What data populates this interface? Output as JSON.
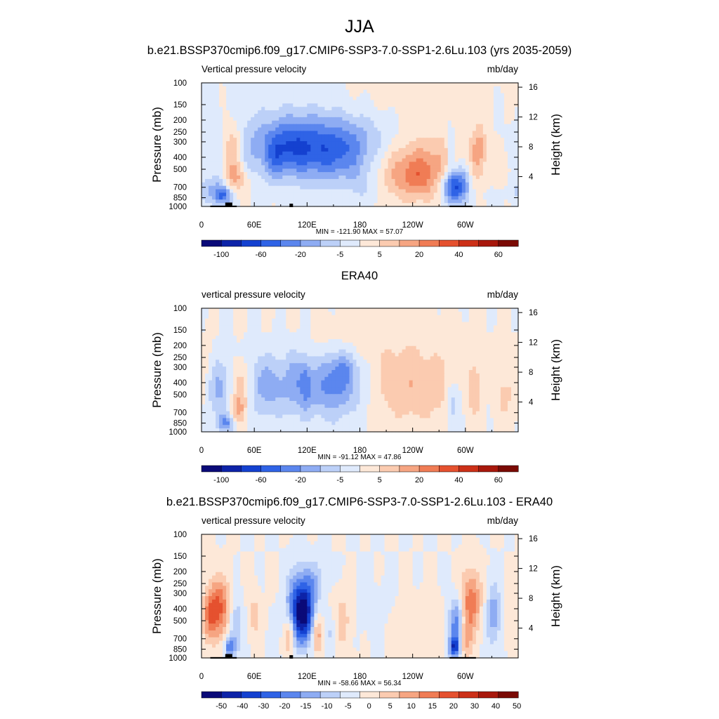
{
  "figure": {
    "season": "JJA",
    "panel_titles": [
      "b.e21.BSSP370cmip6.f09_g17.CMIP6-SSP3-7.0-SSP1-2.6Lu.103 (yrs 2035-2059)",
      "ERA40",
      "b.e21.BSSP370cmip6.f09_g17.CMIP6-SSP3-7.0-SSP1-2.6Lu.103 - ERA40"
    ]
  },
  "chart_data": [
    {
      "type": "heatmap",
      "title": "b.e21.BSSP370cmip6.f09_g17.CMIP6-SSP3-7.0-SSP1-2.6Lu.103 (yrs 2035-2059)",
      "left_label": "Vertical pressure velocity",
      "units": "mb/day",
      "ylabel": "Pressure (mb)",
      "y2label": "Height (km)",
      "x_ticks": [
        "0",
        "60E",
        "120E",
        "180",
        "120W",
        "60W"
      ],
      "x_tick_lon": [
        0,
        60,
        120,
        180,
        240,
        300
      ],
      "xlim": [
        0,
        360
      ],
      "y_ticks": [
        "100",
        "150",
        "200",
        "250",
        "300",
        "400",
        "500",
        "700",
        "850",
        "1000"
      ],
      "y_tick_p": [
        100,
        150,
        200,
        250,
        300,
        400,
        500,
        700,
        850,
        1000
      ],
      "ylim": [
        1000,
        100
      ],
      "y2_ticks": [
        "16",
        "12",
        "8",
        "4"
      ],
      "y2_tick_km": [
        16,
        12,
        8,
        4
      ],
      "minmax": "MIN = -121.90  MAX =  57.07",
      "colorbar_labels": [
        "-100",
        "-60",
        "-20",
        "-5",
        "5",
        "20",
        "40",
        "60"
      ],
      "colorbar_colors": [
        "#0a0a78",
        "#0d23a8",
        "#1441d0",
        "#2f63e6",
        "#5b86ee",
        "#8eacf3",
        "#bcd0f8",
        "#dfeafc",
        "#fde8d8",
        "#fbcbb0",
        "#f6a582",
        "#f07c55",
        "#e5512f",
        "#cc3018",
        "#a8180c",
        "#7a0a04"
      ],
      "topography": [
        [
          10,
          28,
          1000,
          985
        ],
        [
          27,
          35,
          1000,
          930
        ],
        [
          35,
          40,
          1000,
          985
        ],
        [
          100,
          104,
          1000,
          950
        ],
        [
          282,
          308,
          1000,
          985
        ]
      ],
      "blobs": [
        {
          "lon": 135,
          "p": 330,
          "wl": 68,
          "wp": 0.42,
          "v": -26
        },
        {
          "lon": 100,
          "p": 330,
          "wl": 18,
          "wp": 0.32,
          "v": -10
        },
        {
          "lon": 155,
          "p": 430,
          "wl": 28,
          "wp": 0.38,
          "v": -10
        },
        {
          "lon": 125,
          "p": 230,
          "wl": 50,
          "wp": 0.55,
          "v": -6
        },
        {
          "lon": 85,
          "p": 420,
          "wl": 8,
          "wp": 0.3,
          "v": -9
        },
        {
          "lon": 185,
          "p": 700,
          "wl": 12,
          "wp": 0.3,
          "v": -8
        },
        {
          "lon": 240,
          "p": 450,
          "wl": 42,
          "wp": 0.42,
          "v": 24
        },
        {
          "lon": 245,
          "p": 600,
          "wl": 16,
          "wp": 0.25,
          "v": 12
        },
        {
          "lon": 210,
          "p": 150,
          "wl": 70,
          "wp": 0.4,
          "v": 4
        },
        {
          "lon": 35,
          "p": 350,
          "wl": 8,
          "wp": 0.38,
          "v": 22
        },
        {
          "lon": 40,
          "p": 600,
          "wl": 10,
          "wp": 0.18,
          "v": 14
        },
        {
          "lon": 12,
          "p": 750,
          "wl": 14,
          "wp": 0.18,
          "v": -16
        },
        {
          "lon": 25,
          "p": 820,
          "wl": 6,
          "wp": 0.12,
          "v": -25
        },
        {
          "lon": 18,
          "p": 400,
          "wl": 4,
          "wp": 0.55,
          "v": -3
        },
        {
          "lon": 287,
          "p": 700,
          "wl": 10,
          "wp": 0.22,
          "v": -40
        },
        {
          "lon": 283,
          "p": 350,
          "wl": 3,
          "wp": 0.3,
          "v": -14
        },
        {
          "lon": 300,
          "p": 560,
          "wl": 10,
          "wp": 0.35,
          "v": -12
        },
        {
          "lon": 312,
          "p": 420,
          "wl": 6,
          "wp": 0.4,
          "v": 14
        },
        {
          "lon": 318,
          "p": 320,
          "wl": 5,
          "wp": 0.25,
          "v": 10
        },
        {
          "lon": 345,
          "p": 550,
          "wl": 12,
          "wp": 0.5,
          "v": 3
        },
        {
          "lon": 330,
          "p": 820,
          "wl": 8,
          "wp": 0.12,
          "v": -5
        }
      ]
    },
    {
      "type": "heatmap",
      "title": "ERA40",
      "left_label": "vertical pressure velocity",
      "units": "mb/day",
      "ylabel": "Pressure (mb)",
      "y2label": "Height (km)",
      "x_ticks": [
        "0",
        "60E",
        "120E",
        "180",
        "120W",
        "60W"
      ],
      "x_tick_lon": [
        0,
        60,
        120,
        180,
        240,
        300
      ],
      "xlim": [
        0,
        360
      ],
      "y_ticks": [
        "100",
        "150",
        "200",
        "250",
        "300",
        "400",
        "500",
        "700",
        "850",
        "1000"
      ],
      "y_tick_p": [
        100,
        150,
        200,
        250,
        300,
        400,
        500,
        700,
        850,
        1000
      ],
      "ylim": [
        1000,
        100
      ],
      "y2_ticks": [
        "16",
        "12",
        "8",
        "4"
      ],
      "y2_tick_km": [
        16,
        12,
        8,
        4
      ],
      "minmax": "MIN = -91.12  MAX =  47.86",
      "colorbar_labels": [
        "-100",
        "-60",
        "-20",
        "-5",
        "5",
        "20",
        "40",
        "60"
      ],
      "colorbar_colors": [
        "#0a0a78",
        "#0d23a8",
        "#1441d0",
        "#2f63e6",
        "#5b86ee",
        "#8eacf3",
        "#bcd0f8",
        "#dfeafc",
        "#fde8d8",
        "#fbcbb0",
        "#f6a582",
        "#f07c55",
        "#e5512f",
        "#cc3018",
        "#a8180c",
        "#7a0a04"
      ],
      "topography": [],
      "blobs": [
        {
          "lon": 75,
          "p": 420,
          "wl": 22,
          "wp": 0.42,
          "v": -18
        },
        {
          "lon": 150,
          "p": 450,
          "wl": 28,
          "wp": 0.4,
          "v": -24
        },
        {
          "lon": 160,
          "p": 300,
          "wl": 14,
          "wp": 0.25,
          "v": -14
        },
        {
          "lon": 118,
          "p": 380,
          "wl": 5,
          "wp": 0.38,
          "v": -14
        },
        {
          "lon": 105,
          "p": 350,
          "wl": 6,
          "wp": 0.45,
          "v": -8
        },
        {
          "lon": 20,
          "p": 450,
          "wl": 10,
          "wp": 0.4,
          "v": -16
        },
        {
          "lon": 28,
          "p": 850,
          "wl": 8,
          "wp": 0.12,
          "v": -22
        },
        {
          "lon": 45,
          "p": 450,
          "wl": 8,
          "wp": 0.35,
          "v": 20
        },
        {
          "lon": 40,
          "p": 700,
          "wl": 6,
          "wp": 0.18,
          "v": 14
        },
        {
          "lon": 240,
          "p": 450,
          "wl": 45,
          "wp": 0.45,
          "v": 14
        },
        {
          "lon": 210,
          "p": 180,
          "wl": 60,
          "wp": 0.4,
          "v": 5
        },
        {
          "lon": 285,
          "p": 600,
          "wl": 5,
          "wp": 0.3,
          "v": -16
        },
        {
          "lon": 298,
          "p": 450,
          "wl": 6,
          "wp": 0.35,
          "v": -8
        },
        {
          "lon": 310,
          "p": 450,
          "wl": 8,
          "wp": 0.38,
          "v": 10
        },
        {
          "lon": 325,
          "p": 500,
          "wl": 7,
          "wp": 0.35,
          "v": -5
        },
        {
          "lon": 345,
          "p": 500,
          "wl": 12,
          "wp": 0.4,
          "v": 8
        },
        {
          "lon": 5,
          "p": 260,
          "wl": 6,
          "wp": 0.3,
          "v": 4
        }
      ]
    },
    {
      "type": "heatmap",
      "title": "b.e21.BSSP370cmip6.f09_g17.CMIP6-SSP3-7.0-SSP1-2.6Lu.103 - ERA40",
      "left_label": "vertical pressure velocity",
      "units": "mb/day",
      "ylabel": "Pressure (mb)",
      "y2label": "Height (km)",
      "x_ticks": [
        "0",
        "60E",
        "120E",
        "180",
        "120W",
        "60W"
      ],
      "x_tick_lon": [
        0,
        60,
        120,
        180,
        240,
        300
      ],
      "xlim": [
        0,
        360
      ],
      "y_ticks": [
        "100",
        "150",
        "200",
        "250",
        "300",
        "400",
        "500",
        "700",
        "850",
        "1000"
      ],
      "y_tick_p": [
        100,
        150,
        200,
        250,
        300,
        400,
        500,
        700,
        850,
        1000
      ],
      "ylim": [
        1000,
        100
      ],
      "y2_ticks": [
        "16",
        "12",
        "8",
        "4"
      ],
      "y2_tick_km": [
        16,
        12,
        8,
        4
      ],
      "minmax": "MIN = -58.66  MAX =  56.34",
      "colorbar_labels": [
        "-50",
        "-40",
        "-30",
        "-20",
        "-15",
        "-10",
        "-5",
        "0",
        "5",
        "10",
        "15",
        "20",
        "30",
        "40",
        "50"
      ],
      "colorbar_colors": [
        "#0a0a78",
        "#0d23a8",
        "#1441d0",
        "#2f63e6",
        "#5b86ee",
        "#8eacf3",
        "#bcd0f8",
        "#dfeafc",
        "#fde8d8",
        "#fbcbb0",
        "#f6a582",
        "#f07c55",
        "#e5512f",
        "#cc3018",
        "#a8180c",
        "#7a0a04"
      ],
      "topography": [
        [
          10,
          28,
          1000,
          985
        ],
        [
          27,
          35,
          1000,
          930
        ],
        [
          35,
          40,
          1000,
          985
        ],
        [
          100,
          104,
          1000,
          950
        ],
        [
          282,
          312,
          1000,
          985
        ]
      ],
      "blobs": [
        {
          "lon": 20,
          "p": 400,
          "wl": 10,
          "wp": 0.4,
          "v": 30
        },
        {
          "lon": 10,
          "p": 450,
          "wl": 6,
          "wp": 0.3,
          "v": 16
        },
        {
          "lon": 38,
          "p": 550,
          "wl": 6,
          "wp": 0.4,
          "v": -18
        },
        {
          "lon": 32,
          "p": 820,
          "wl": 4,
          "wp": 0.12,
          "v": -26
        },
        {
          "lon": 60,
          "p": 450,
          "wl": 5,
          "wp": 0.35,
          "v": 10
        },
        {
          "lon": 108,
          "p": 400,
          "wl": 8,
          "wp": 0.45,
          "v": -34
        },
        {
          "lon": 118,
          "p": 450,
          "wl": 7,
          "wp": 0.35,
          "v": -42
        },
        {
          "lon": 125,
          "p": 250,
          "wl": 10,
          "wp": 0.3,
          "v": -16
        },
        {
          "lon": 100,
          "p": 650,
          "wl": 4,
          "wp": 0.25,
          "v": 22
        },
        {
          "lon": 132,
          "p": 650,
          "wl": 4,
          "wp": 0.25,
          "v": 20
        },
        {
          "lon": 160,
          "p": 500,
          "wl": 8,
          "wp": 0.4,
          "v": 12
        },
        {
          "lon": 148,
          "p": 620,
          "wl": 5,
          "wp": 0.25,
          "v": -10
        },
        {
          "lon": 200,
          "p": 420,
          "wl": 20,
          "wp": 0.4,
          "v": -4
        },
        {
          "lon": 240,
          "p": 500,
          "wl": 25,
          "wp": 0.4,
          "v": 5
        },
        {
          "lon": 290,
          "p": 550,
          "wl": 6,
          "wp": 0.35,
          "v": -30
        },
        {
          "lon": 287,
          "p": 820,
          "wl": 4,
          "wp": 0.12,
          "v": -36
        },
        {
          "lon": 306,
          "p": 350,
          "wl": 8,
          "wp": 0.42,
          "v": 28
        },
        {
          "lon": 300,
          "p": 700,
          "wl": 5,
          "wp": 0.25,
          "v": 18
        },
        {
          "lon": 332,
          "p": 450,
          "wl": 6,
          "wp": 0.4,
          "v": -20
        },
        {
          "lon": 350,
          "p": 500,
          "wl": 6,
          "wp": 0.3,
          "v": 6
        }
      ]
    }
  ]
}
